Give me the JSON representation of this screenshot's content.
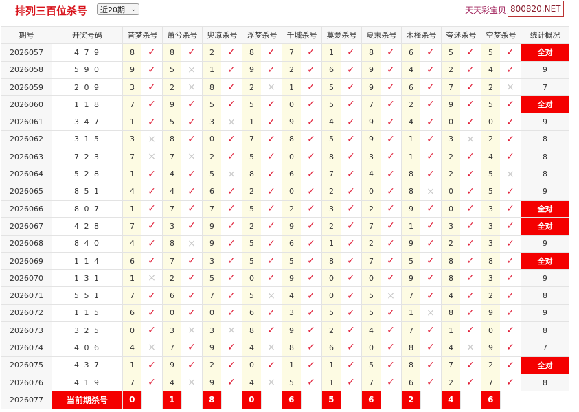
{
  "header": {
    "title": "排列三百位杀号",
    "period_select": "近20期",
    "slogan": "天天彩宝贝，天",
    "brand": "800820.NET"
  },
  "colors": {
    "accent": "#f40000",
    "check": "#e0203a",
    "cross": "#c8c8c8",
    "kill_bg": "#fdfbe3"
  },
  "columns": [
    "期号",
    "开奖号码",
    "昔梦杀号",
    "萧兮杀号",
    "臾凉杀号",
    "浮梦杀号",
    "千城杀号",
    "莫爱杀号",
    "夏末杀号",
    "木槿杀号",
    "夸迷杀号",
    "空梦杀号",
    "统计概况"
  ],
  "rows": [
    {
      "issue": "2026057",
      "draw": "4 7 9",
      "kills": [
        "8",
        "8",
        "2",
        "8",
        "7",
        "1",
        "8",
        "6",
        "5",
        "5"
      ],
      "marks": [
        "✓",
        "✓",
        "✓",
        "✓",
        "✓",
        "✓",
        "✓",
        "✓",
        "✓",
        "✓"
      ],
      "stat": "全对"
    },
    {
      "issue": "2026058",
      "draw": "5 9 0",
      "kills": [
        "9",
        "5",
        "1",
        "9",
        "2",
        "6",
        "9",
        "4",
        "2",
        "4"
      ],
      "marks": [
        "✓",
        "×",
        "✓",
        "✓",
        "✓",
        "✓",
        "✓",
        "✓",
        "✓",
        "✓"
      ],
      "stat": "9"
    },
    {
      "issue": "2026059",
      "draw": "2 0 9",
      "kills": [
        "3",
        "2",
        "8",
        "2",
        "1",
        "5",
        "9",
        "6",
        "7",
        "2"
      ],
      "marks": [
        "✓",
        "×",
        "✓",
        "×",
        "✓",
        "✓",
        "✓",
        "✓",
        "✓",
        "×"
      ],
      "stat": "7"
    },
    {
      "issue": "2026060",
      "draw": "1 1 8",
      "kills": [
        "7",
        "9",
        "5",
        "5",
        "0",
        "5",
        "7",
        "2",
        "9",
        "5"
      ],
      "marks": [
        "✓",
        "✓",
        "✓",
        "✓",
        "✓",
        "✓",
        "✓",
        "✓",
        "✓",
        "✓"
      ],
      "stat": "全对"
    },
    {
      "issue": "2026061",
      "draw": "3 4 7",
      "kills": [
        "1",
        "5",
        "3",
        "1",
        "9",
        "4",
        "9",
        "4",
        "0",
        "0"
      ],
      "marks": [
        "✓",
        "✓",
        "×",
        "✓",
        "✓",
        "✓",
        "✓",
        "✓",
        "✓",
        "✓"
      ],
      "stat": "9"
    },
    {
      "issue": "2026062",
      "draw": "3 1 5",
      "kills": [
        "3",
        "8",
        "0",
        "7",
        "8",
        "5",
        "9",
        "1",
        "3",
        "2"
      ],
      "marks": [
        "×",
        "✓",
        "✓",
        "✓",
        "✓",
        "✓",
        "✓",
        "✓",
        "×",
        "✓"
      ],
      "stat": "8"
    },
    {
      "issue": "2026063",
      "draw": "7 2 3",
      "kills": [
        "7",
        "7",
        "2",
        "5",
        "0",
        "8",
        "3",
        "1",
        "2",
        "4"
      ],
      "marks": [
        "×",
        "×",
        "✓",
        "✓",
        "✓",
        "✓",
        "✓",
        "✓",
        "✓",
        "✓"
      ],
      "stat": "8"
    },
    {
      "issue": "2026064",
      "draw": "5 2 8",
      "kills": [
        "1",
        "4",
        "5",
        "8",
        "6",
        "7",
        "4",
        "8",
        "2",
        "5"
      ],
      "marks": [
        "✓",
        "✓",
        "×",
        "✓",
        "✓",
        "✓",
        "✓",
        "✓",
        "✓",
        "×"
      ],
      "stat": "8"
    },
    {
      "issue": "2026065",
      "draw": "8 5 1",
      "kills": [
        "4",
        "4",
        "6",
        "2",
        "0",
        "2",
        "0",
        "8",
        "0",
        "5"
      ],
      "marks": [
        "✓",
        "✓",
        "✓",
        "✓",
        "✓",
        "✓",
        "✓",
        "×",
        "✓",
        "✓"
      ],
      "stat": "9"
    },
    {
      "issue": "2026066",
      "draw": "8 0 7",
      "kills": [
        "1",
        "7",
        "7",
        "5",
        "2",
        "3",
        "2",
        "9",
        "0",
        "3"
      ],
      "marks": [
        "✓",
        "✓",
        "✓",
        "✓",
        "✓",
        "✓",
        "✓",
        "✓",
        "✓",
        "✓"
      ],
      "stat": "全对"
    },
    {
      "issue": "2026067",
      "draw": "4 2 8",
      "kills": [
        "7",
        "3",
        "9",
        "2",
        "9",
        "2",
        "7",
        "1",
        "3",
        "3"
      ],
      "marks": [
        "✓",
        "✓",
        "✓",
        "✓",
        "✓",
        "✓",
        "✓",
        "✓",
        "✓",
        "✓"
      ],
      "stat": "全对"
    },
    {
      "issue": "2026068",
      "draw": "8 4 0",
      "kills": [
        "4",
        "8",
        "9",
        "5",
        "6",
        "1",
        "2",
        "9",
        "2",
        "3"
      ],
      "marks": [
        "✓",
        "×",
        "✓",
        "✓",
        "✓",
        "✓",
        "✓",
        "✓",
        "✓",
        "✓"
      ],
      "stat": "9"
    },
    {
      "issue": "2026069",
      "draw": "1 1 4",
      "kills": [
        "6",
        "7",
        "3",
        "5",
        "5",
        "8",
        "7",
        "5",
        "8",
        "8"
      ],
      "marks": [
        "✓",
        "✓",
        "✓",
        "✓",
        "✓",
        "✓",
        "✓",
        "✓",
        "✓",
        "✓"
      ],
      "stat": "全对"
    },
    {
      "issue": "2026070",
      "draw": "1 3 1",
      "kills": [
        "1",
        "2",
        "5",
        "0",
        "9",
        "0",
        "0",
        "9",
        "8",
        "3"
      ],
      "marks": [
        "×",
        "✓",
        "✓",
        "✓",
        "✓",
        "✓",
        "✓",
        "✓",
        "✓",
        "✓"
      ],
      "stat": "9"
    },
    {
      "issue": "2026071",
      "draw": "5 5 1",
      "kills": [
        "7",
        "6",
        "7",
        "5",
        "4",
        "0",
        "5",
        "7",
        "4",
        "2"
      ],
      "marks": [
        "✓",
        "✓",
        "✓",
        "×",
        "✓",
        "✓",
        "×",
        "✓",
        "✓",
        "✓"
      ],
      "stat": "8"
    },
    {
      "issue": "2026072",
      "draw": "1 1 5",
      "kills": [
        "6",
        "0",
        "0",
        "6",
        "3",
        "5",
        "5",
        "1",
        "8",
        "9"
      ],
      "marks": [
        "✓",
        "✓",
        "✓",
        "✓",
        "✓",
        "✓",
        "✓",
        "×",
        "✓",
        "✓"
      ],
      "stat": "9"
    },
    {
      "issue": "2026073",
      "draw": "3 2 5",
      "kills": [
        "0",
        "3",
        "3",
        "8",
        "9",
        "2",
        "4",
        "7",
        "1",
        "0"
      ],
      "marks": [
        "✓",
        "×",
        "×",
        "✓",
        "✓",
        "✓",
        "✓",
        "✓",
        "✓",
        "✓"
      ],
      "stat": "8"
    },
    {
      "issue": "2026074",
      "draw": "4 0 6",
      "kills": [
        "4",
        "7",
        "9",
        "4",
        "8",
        "6",
        "0",
        "8",
        "4",
        "9"
      ],
      "marks": [
        "×",
        "✓",
        "✓",
        "×",
        "✓",
        "✓",
        "✓",
        "✓",
        "×",
        "✓"
      ],
      "stat": "7"
    },
    {
      "issue": "2026075",
      "draw": "4 3 7",
      "kills": [
        "1",
        "9",
        "2",
        "0",
        "1",
        "1",
        "5",
        "8",
        "7",
        "2"
      ],
      "marks": [
        "✓",
        "✓",
        "✓",
        "✓",
        "✓",
        "✓",
        "✓",
        "✓",
        "✓",
        "✓"
      ],
      "stat": "全对"
    },
    {
      "issue": "2026076",
      "draw": "4 1 9",
      "kills": [
        "7",
        "4",
        "9",
        "4",
        "5",
        "1",
        "7",
        "6",
        "2",
        "7"
      ],
      "marks": [
        "✓",
        "×",
        "✓",
        "×",
        "✓",
        "✓",
        "✓",
        "✓",
        "✓",
        "✓"
      ],
      "stat": "8"
    }
  ],
  "current": {
    "issue": "2026077",
    "label": "当前期杀号",
    "kills": [
      "0",
      "1",
      "8",
      "0",
      "6",
      "5",
      "6",
      "2",
      "4",
      "6"
    ]
  }
}
